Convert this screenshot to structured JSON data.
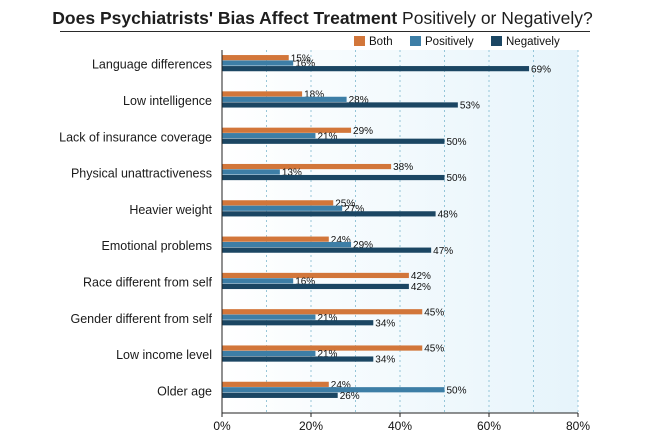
{
  "title_bold": "Does Psychiatrists' Bias Affect Treatment",
  "title_rest": " Positively or Negatively?",
  "chart_data": {
    "type": "bar",
    "orientation": "horizontal",
    "title": "Does Psychiatrists' Bias Affect Treatment Positively or Negatively?",
    "categories": [
      "Language differences",
      "Low intelligence",
      "Lack of insurance coverage",
      "Physical unattractiveness",
      "Heavier weight",
      "Emotional problems",
      "Race different from self",
      "Gender different from self",
      "Low income level",
      "Older age"
    ],
    "series": [
      {
        "name": "Both",
        "color": "#d2763a",
        "values": [
          15,
          18,
          29,
          38,
          25,
          24,
          42,
          45,
          45,
          24
        ]
      },
      {
        "name": "Positively",
        "color": "#3d7ea6",
        "values": [
          16,
          28,
          21,
          13,
          27,
          29,
          16,
          21,
          21,
          50
        ]
      },
      {
        "name": "Negatively",
        "color": "#1b4663",
        "values": [
          69,
          53,
          50,
          50,
          48,
          47,
          42,
          34,
          34,
          26
        ]
      }
    ],
    "xlim": [
      0,
      80
    ],
    "xticks": [
      0,
      20,
      40,
      60,
      80
    ],
    "tick_format": "%",
    "grid": true,
    "legend_position": "top-right"
  }
}
